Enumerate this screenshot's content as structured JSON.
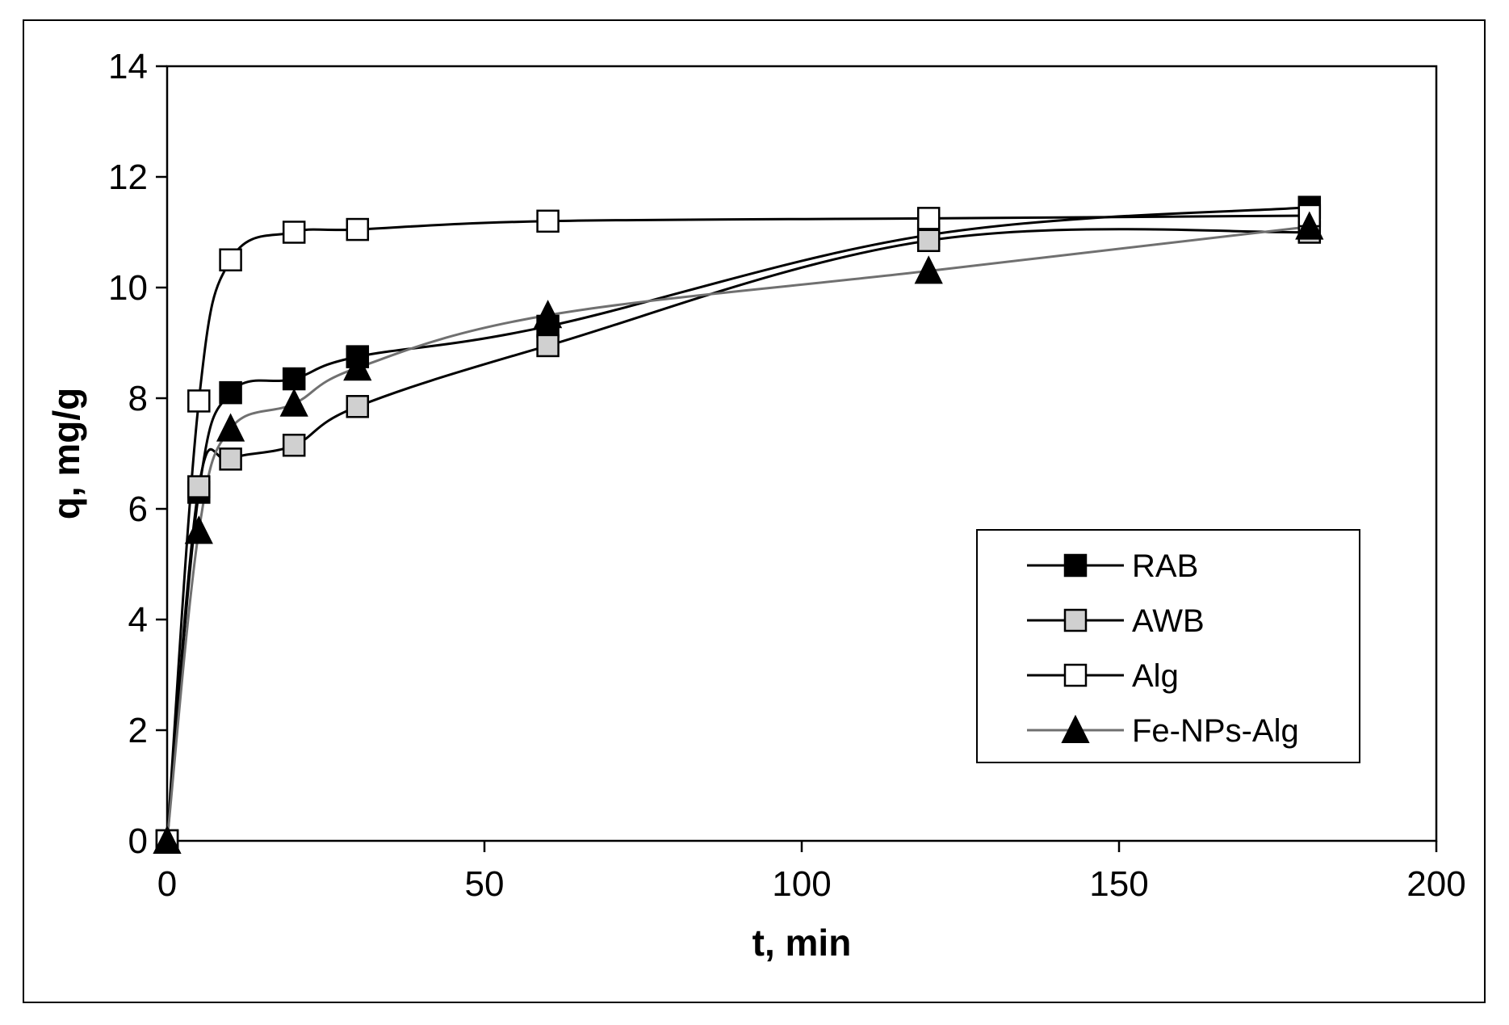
{
  "chart_data": {
    "type": "line",
    "title": "",
    "xlabel": "t, min",
    "ylabel": "q, mg/g",
    "xlim": [
      0,
      200
    ],
    "ylim": [
      0,
      14
    ],
    "x_ticks": [
      0,
      50,
      100,
      150,
      200
    ],
    "y_ticks": [
      0,
      2,
      4,
      6,
      8,
      10,
      12,
      14
    ],
    "x_tick_labels": [
      "0",
      "50",
      "100",
      "150",
      "200"
    ],
    "y_tick_labels": [
      "0",
      "2",
      "4",
      "6",
      "8",
      "10",
      "12",
      "14"
    ],
    "grid": false,
    "legend_position": "bottom-right",
    "series": [
      {
        "name": "RAB",
        "marker": "square",
        "marker_fill": "#000000",
        "line_color": "#000000",
        "x": [
          0,
          5,
          10,
          20,
          30,
          60,
          120,
          180
        ],
        "y": [
          0,
          6.3,
          8.1,
          8.35,
          8.75,
          9.3,
          10.95,
          11.45
        ]
      },
      {
        "name": "AWB",
        "marker": "square",
        "marker_fill": "#d0d0d0",
        "line_color": "#000000",
        "x": [
          0,
          5,
          10,
          20,
          30,
          60,
          120,
          180
        ],
        "y": [
          0,
          6.4,
          6.9,
          7.15,
          7.85,
          8.95,
          10.85,
          11.0
        ]
      },
      {
        "name": "Alg",
        "marker": "square",
        "marker_fill": "#ffffff",
        "line_color": "#000000",
        "x": [
          0,
          5,
          10,
          20,
          30,
          60,
          120,
          180
        ],
        "y": [
          0,
          7.95,
          10.5,
          11.0,
          11.05,
          11.2,
          11.25,
          11.3
        ]
      },
      {
        "name": "Fe-NPs-Alg",
        "marker": "triangle",
        "marker_fill": "#000000",
        "line_color": "#707070",
        "x": [
          0,
          5,
          10,
          20,
          30,
          60,
          120,
          180
        ],
        "y": [
          0,
          5.6,
          7.45,
          7.9,
          8.55,
          9.5,
          10.3,
          11.1
        ]
      }
    ]
  }
}
